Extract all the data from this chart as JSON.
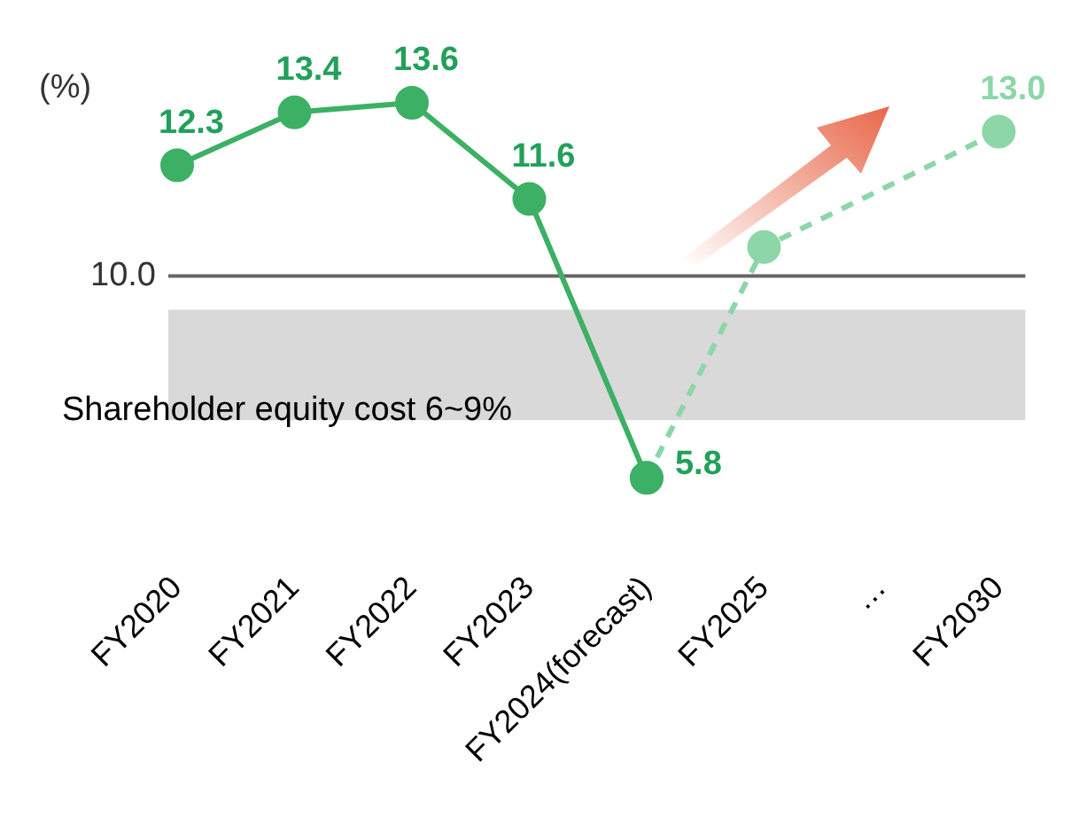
{
  "chart_data": {
    "type": "line",
    "ylabel": "(%)",
    "categories": [
      "FY2020",
      "FY2021",
      "FY2022",
      "FY2023",
      "FY2024(forecast)",
      "FY2025",
      "…",
      "FY2030"
    ],
    "series": [
      {
        "color": "#3cb064",
        "values": [
          12.3,
          13.4,
          13.6,
          11.6,
          5.8,
          null,
          null,
          null
        ],
        "value_labels": [
          "12.3",
          "13.4",
          "13.6",
          "11.6",
          "5.8",
          null,
          null,
          null
        ],
        "line_style": "solid"
      },
      {
        "color": "#8cd6a8",
        "values": [
          null,
          null,
          null,
          null,
          5.8,
          10.6,
          null,
          13.0
        ],
        "value_labels": [
          null,
          null,
          null,
          null,
          null,
          null,
          null,
          "13.0"
        ],
        "line_style": "dashed"
      }
    ],
    "ref_lines": [
      {
        "axis": "y",
        "value": 10,
        "label": "10.0",
        "color": "#666666"
      }
    ],
    "bands": [
      {
        "axis": "y",
        "from": 7.0,
        "to": 9.3,
        "label": "Shareholder equity cost 6~9%",
        "color": "#d9d9d9"
      }
    ],
    "marker": "circle",
    "grid": false,
    "legend": false
  }
}
